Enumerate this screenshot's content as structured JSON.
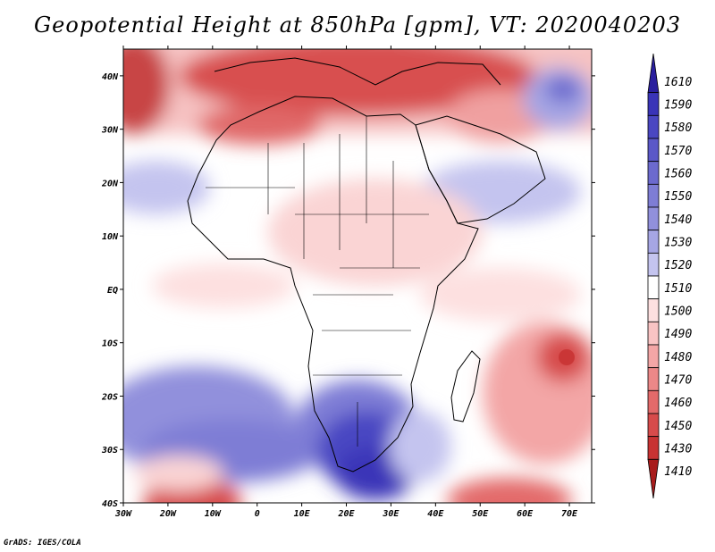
{
  "title": "Geopotential Height at 850hPa [gpm], VT: 2020040203",
  "credit": "GrADS: IGES/COLA",
  "map": {
    "region": "Africa",
    "lon_range": [
      -30,
      75
    ],
    "lat_range": [
      -40,
      45
    ],
    "x_ticks": [
      "30W",
      "20W",
      "10W",
      "0",
      "10E",
      "20E",
      "30E",
      "40E",
      "50E",
      "60E",
      "70E"
    ],
    "y_ticks": [
      "40N",
      "30N",
      "20N",
      "10N",
      "EQ",
      "10S",
      "20S",
      "30S",
      "40S"
    ],
    "features": [
      {
        "name": "mediterranean-high",
        "value": 1430,
        "color": "#c83a3a"
      },
      {
        "name": "sw-atlantic-high",
        "value": 1450,
        "color": "#e05a5a"
      },
      {
        "name": "indian-ocean-high",
        "value": 1440,
        "color": "#c84545"
      },
      {
        "name": "southern-africa-low",
        "value": 1580,
        "color": "#3a34b8"
      },
      {
        "name": "middle-east-low",
        "value": 1560,
        "color": "#6a66cc"
      }
    ]
  },
  "colorbar": {
    "levels": [
      1610,
      1590,
      1580,
      1570,
      1560,
      1550,
      1540,
      1530,
      1520,
      1510,
      1500,
      1490,
      1480,
      1470,
      1460,
      1450,
      1430,
      1410
    ],
    "colors": [
      "#2a1f9e",
      "#3a34b8",
      "#4a47c2",
      "#5b58c8",
      "#6c6ace",
      "#7e7dd5",
      "#9190dc",
      "#a6a6e4",
      "#c4c4ef",
      "#ffffff",
      "#fde0e0",
      "#f9c4c4",
      "#f3a6a6",
      "#ec8888",
      "#e36a6a",
      "#d74b4b",
      "#c83333",
      "#a81c1c"
    ]
  }
}
